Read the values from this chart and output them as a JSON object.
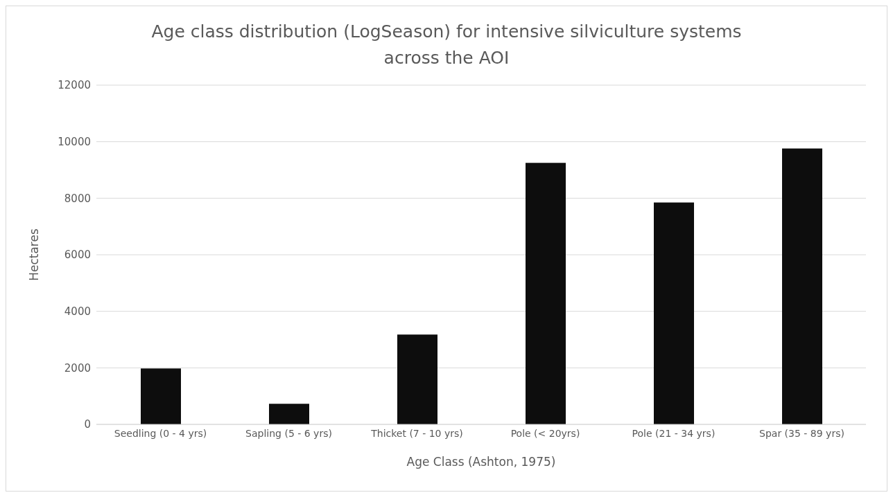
{
  "chart_data": {
    "type": "bar",
    "title": "Age class distribution (LogSeason) for intensive silviculture systems across the AOI",
    "xlabel": "Age Class (Ashton, 1975)",
    "ylabel": "Hectares",
    "categories": [
      "Seedling (0 - 4 yrs)",
      "Sapling (5 - 6 yrs)",
      "Thicket (7 - 10 yrs)",
      "Pole (< 20yrs)",
      "Pole (21 - 34 yrs)",
      "Spar (35 - 89 yrs)"
    ],
    "values": [
      1980,
      730,
      3180,
      9250,
      7850,
      9760
    ],
    "color": "#0d0d0d",
    "ylim": [
      0,
      12000
    ],
    "yticks": [
      0,
      2000,
      4000,
      6000,
      8000,
      10000,
      12000
    ],
    "grid": "y"
  }
}
